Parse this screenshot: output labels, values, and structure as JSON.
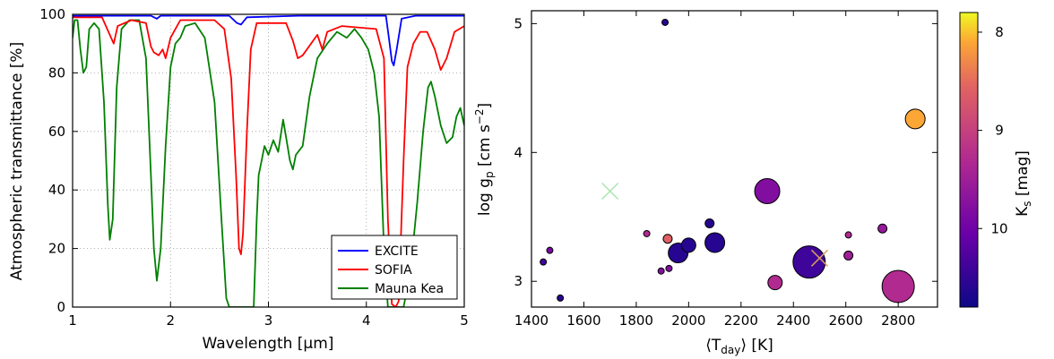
{
  "chart_data": [
    {
      "type": "line",
      "xlabel": "Wavelength [μm]",
      "ylabel": "Atmospheric transmittance [%]",
      "xlim": [
        1,
        5
      ],
      "ylim": [
        0,
        100
      ],
      "xticks": [
        "1",
        "2",
        "3",
        "4",
        "5"
      ],
      "yticks": [
        "0",
        "20",
        "40",
        "60",
        "80",
        "100"
      ],
      "grid": "dotted",
      "legend_position": "lower-right",
      "series": [
        {
          "name": "EXCITE",
          "color": "#0000ff",
          "points": [
            [
              1.0,
              99.5
            ],
            [
              1.8,
              99.5
            ],
            [
              1.86,
              98.5
            ],
            [
              1.9,
              99.5
            ],
            [
              2.6,
              99.5
            ],
            [
              2.68,
              97
            ],
            [
              2.72,
              96.5
            ],
            [
              2.78,
              99
            ],
            [
              3.3,
              99.5
            ],
            [
              4.2,
              99.5
            ],
            [
              4.23,
              92
            ],
            [
              4.26,
              84
            ],
            [
              4.28,
              82.5
            ],
            [
              4.31,
              88
            ],
            [
              4.36,
              98.5
            ],
            [
              4.5,
              99.5
            ],
            [
              5.0,
              99.5
            ]
          ]
        },
        {
          "name": "SOFIA",
          "color": "#ff0000",
          "points": [
            [
              1.0,
              99
            ],
            [
              1.3,
              99
            ],
            [
              1.38,
              93
            ],
            [
              1.42,
              90
            ],
            [
              1.46,
              96
            ],
            [
              1.6,
              98
            ],
            [
              1.75,
              97
            ],
            [
              1.8,
              89
            ],
            [
              1.83,
              87
            ],
            [
              1.88,
              86
            ],
            [
              1.92,
              88
            ],
            [
              1.95,
              85
            ],
            [
              2.0,
              92
            ],
            [
              2.05,
              95
            ],
            [
              2.1,
              98
            ],
            [
              2.45,
              98
            ],
            [
              2.55,
              95
            ],
            [
              2.62,
              78
            ],
            [
              2.67,
              45
            ],
            [
              2.7,
              20
            ],
            [
              2.72,
              18
            ],
            [
              2.74,
              25
            ],
            [
              2.78,
              60
            ],
            [
              2.82,
              88
            ],
            [
              2.88,
              97
            ],
            [
              3.18,
              97
            ],
            [
              3.25,
              91
            ],
            [
              3.3,
              85
            ],
            [
              3.35,
              86
            ],
            [
              3.5,
              93
            ],
            [
              3.55,
              88
            ],
            [
              3.6,
              94
            ],
            [
              3.75,
              96
            ],
            [
              4.1,
              95
            ],
            [
              4.18,
              85
            ],
            [
              4.22,
              30
            ],
            [
              4.26,
              1
            ],
            [
              4.3,
              0
            ],
            [
              4.33,
              2
            ],
            [
              4.38,
              50
            ],
            [
              4.42,
              82
            ],
            [
              4.48,
              90
            ],
            [
              4.55,
              94
            ],
            [
              4.62,
              94
            ],
            [
              4.7,
              88
            ],
            [
              4.76,
              81
            ],
            [
              4.82,
              85
            ],
            [
              4.9,
              94
            ],
            [
              5.0,
              96
            ]
          ]
        },
        {
          "name": "Mauna Kea",
          "color": "#008000",
          "points": [
            [
              1.0,
              92
            ],
            [
              1.02,
              98
            ],
            [
              1.05,
              98
            ],
            [
              1.08,
              88
            ],
            [
              1.11,
              80
            ],
            [
              1.14,
              82
            ],
            [
              1.17,
              95
            ],
            [
              1.22,
              97
            ],
            [
              1.27,
              95
            ],
            [
              1.32,
              70
            ],
            [
              1.36,
              35
            ],
            [
              1.38,
              23
            ],
            [
              1.41,
              30
            ],
            [
              1.45,
              75
            ],
            [
              1.5,
              95
            ],
            [
              1.58,
              98
            ],
            [
              1.68,
              98
            ],
            [
              1.75,
              85
            ],
            [
              1.8,
              45
            ],
            [
              1.83,
              20
            ],
            [
              1.86,
              9
            ],
            [
              1.9,
              20
            ],
            [
              1.95,
              55
            ],
            [
              2.0,
              82
            ],
            [
              2.05,
              90
            ],
            [
              2.1,
              92
            ],
            [
              2.15,
              96
            ],
            [
              2.25,
              97
            ],
            [
              2.35,
              92
            ],
            [
              2.45,
              70
            ],
            [
              2.52,
              30
            ],
            [
              2.57,
              3
            ],
            [
              2.6,
              0
            ],
            [
              2.85,
              0
            ],
            [
              2.88,
              30
            ],
            [
              2.9,
              45
            ],
            [
              2.93,
              50
            ],
            [
              2.96,
              55
            ],
            [
              3.0,
              52
            ],
            [
              3.05,
              57
            ],
            [
              3.1,
              53
            ],
            [
              3.15,
              64
            ],
            [
              3.18,
              58
            ],
            [
              3.22,
              50
            ],
            [
              3.25,
              47
            ],
            [
              3.28,
              52
            ],
            [
              3.35,
              55
            ],
            [
              3.42,
              72
            ],
            [
              3.5,
              85
            ],
            [
              3.6,
              90
            ],
            [
              3.7,
              94
            ],
            [
              3.8,
              92
            ],
            [
              3.88,
              95
            ],
            [
              3.95,
              92
            ],
            [
              4.02,
              88
            ],
            [
              4.08,
              80
            ],
            [
              4.13,
              65
            ],
            [
              4.18,
              20
            ],
            [
              4.22,
              0
            ],
            [
              4.38,
              0
            ],
            [
              4.45,
              12
            ],
            [
              4.52,
              36
            ],
            [
              4.58,
              60
            ],
            [
              4.63,
              75
            ],
            [
              4.66,
              77
            ],
            [
              4.7,
              72
            ],
            [
              4.76,
              62
            ],
            [
              4.82,
              56
            ],
            [
              4.88,
              58
            ],
            [
              4.92,
              65
            ],
            [
              4.96,
              68
            ],
            [
              5.0,
              62
            ]
          ]
        }
      ]
    },
    {
      "type": "scatter",
      "xlabel": "⟨T_day⟩ [K]",
      "ylabel": "log g_p [cm s^−2]",
      "xlim": [
        1400,
        2950
      ],
      "ylim": [
        2.8,
        5.1
      ],
      "xticks": [
        "1400",
        "1600",
        "1800",
        "2000",
        "2200",
        "2400",
        "2600",
        "2800"
      ],
      "yticks": [
        "3",
        "4",
        "5"
      ],
      "grid": "off",
      "colorbar": {
        "label": "K_s [mag]",
        "ticks": [
          "8",
          "9",
          "10"
        ],
        "range": [
          7.8,
          10.8
        ],
        "colormap": "plasma (reversed)"
      },
      "points": [
        {
          "x": 1910,
          "y": 5.01,
          "size": 1,
          "kmag": 10.6
        },
        {
          "x": 2865,
          "y": 4.26,
          "size": 4,
          "kmag": 8.1
        },
        {
          "x": 2300,
          "y": 3.7,
          "size": 5,
          "kmag": 9.8
        },
        {
          "x": 1700,
          "y": 3.7,
          "marker": "x",
          "color": "#a8e6b0"
        },
        {
          "x": 2080,
          "y": 3.45,
          "size": 2,
          "kmag": 10.6
        },
        {
          "x": 2100,
          "y": 3.3,
          "size": 4,
          "kmag": 10.6
        },
        {
          "x": 1960,
          "y": 3.22,
          "size": 4,
          "kmag": 10.6
        },
        {
          "x": 2000,
          "y": 3.28,
          "size": 3,
          "kmag": 10.6
        },
        {
          "x": 1840,
          "y": 3.37,
          "size": 1,
          "kmag": 9.3
        },
        {
          "x": 1920,
          "y": 3.33,
          "size": 2,
          "kmag": 8.6
        },
        {
          "x": 1470,
          "y": 3.24,
          "size": 1,
          "kmag": 9.9
        },
        {
          "x": 1445,
          "y": 3.15,
          "size": 1,
          "kmag": 10.4
        },
        {
          "x": 1895,
          "y": 3.08,
          "size": 1,
          "kmag": 9.8
        },
        {
          "x": 1925,
          "y": 3.1,
          "size": 1,
          "kmag": 9.8
        },
        {
          "x": 1510,
          "y": 2.87,
          "size": 1,
          "kmag": 10.6
        },
        {
          "x": 2460,
          "y": 3.15,
          "size": 6,
          "kmag": 10.4
        },
        {
          "x": 2500,
          "y": 3.18,
          "marker": "x",
          "color": "#d8a060"
        },
        {
          "x": 2330,
          "y": 2.99,
          "size": 3,
          "kmag": 9.3
        },
        {
          "x": 2610,
          "y": 3.36,
          "size": 1,
          "kmag": 9.3
        },
        {
          "x": 2610,
          "y": 3.2,
          "size": 2,
          "kmag": 9.5
        },
        {
          "x": 2740,
          "y": 3.41,
          "size": 2,
          "kmag": 9.6
        },
        {
          "x": 2800,
          "y": 2.96,
          "size": 6,
          "kmag": 9.3
        }
      ]
    }
  ]
}
